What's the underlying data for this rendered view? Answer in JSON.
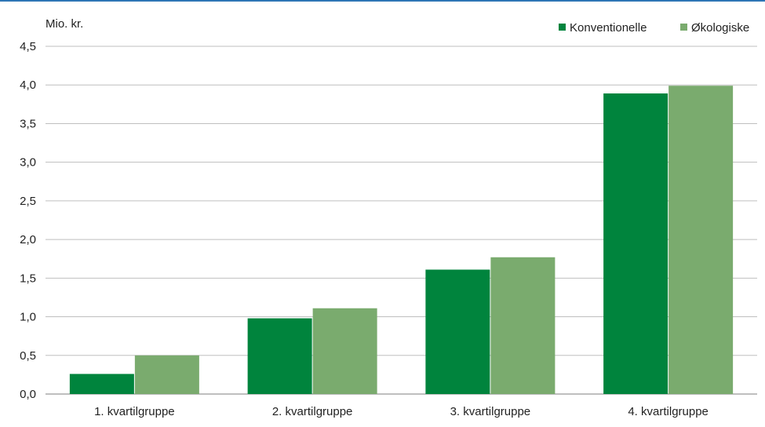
{
  "chart_data": {
    "type": "bar",
    "title": "",
    "ylabel": "Mio. kr.",
    "xlabel": "",
    "categories": [
      "1. kvartilgruppe",
      "2. kvartilgruppe",
      "3. kvartilgruppe",
      "4. kvartilgruppe"
    ],
    "series": [
      {
        "name": "Konventionelle",
        "color": "#00843d",
        "values": [
          0.26,
          0.98,
          1.61,
          3.89
        ]
      },
      {
        "name": "Økologiske",
        "color": "#7aab6e",
        "values": [
          0.5,
          1.11,
          1.77,
          3.99
        ]
      }
    ],
    "ylim": [
      0,
      4.5
    ],
    "yticks": [
      "0,0",
      "0,5",
      "1,0",
      "1,5",
      "2,0",
      "2,5",
      "3,0",
      "3,5",
      "4,0",
      "4,5"
    ],
    "grid": true,
    "legend_position": "top-right",
    "colors": {
      "accent_rule": "#2e75b6",
      "gridline": "#bfbfbf"
    }
  }
}
